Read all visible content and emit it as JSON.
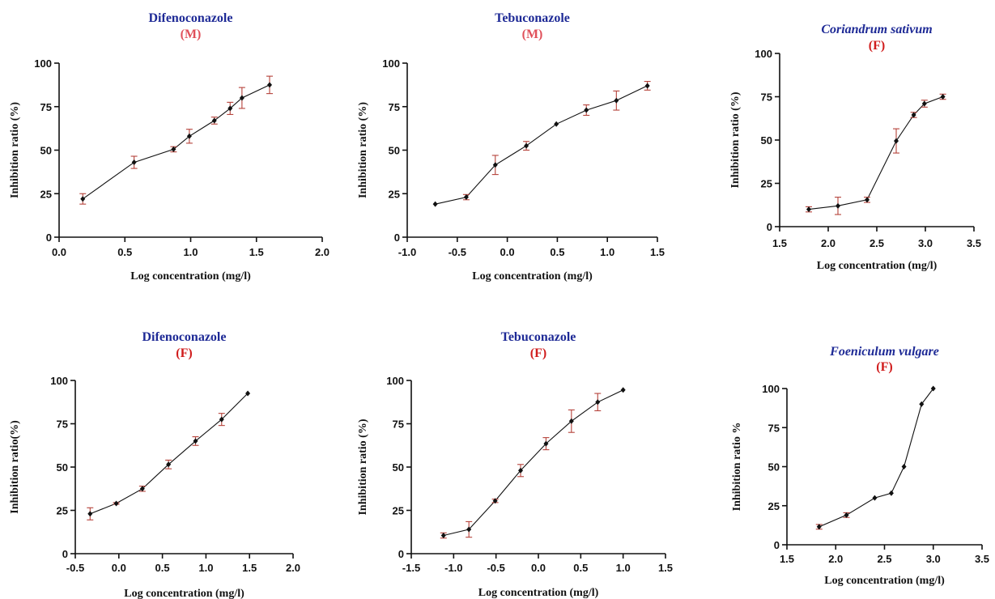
{
  "chart_data": [
    {
      "type": "line",
      "title": "Difenoconazole",
      "subtitle": "(M)",
      "subtitle_color": "#e0505a",
      "xlabel": "Log concentration (mg/l)",
      "ylabel": "Inhibition ratio (%)",
      "xlim": [
        0.0,
        2.0
      ],
      "ylim": [
        0,
        100
      ],
      "xticks": [
        "0.0",
        "0.5",
        "1.0",
        "1.5",
        "2.0"
      ],
      "yticks": [
        "0",
        "25",
        "50",
        "75",
        "100"
      ],
      "grid": false,
      "x": [
        0.18,
        0.57,
        0.87,
        0.99,
        1.18,
        1.3,
        1.39,
        1.6
      ],
      "y": [
        22,
        43,
        50.5,
        58,
        67,
        74,
        80,
        87.5
      ],
      "error": [
        3,
        3.5,
        1.5,
        4,
        2,
        3.5,
        6,
        5
      ]
    },
    {
      "type": "line",
      "title": "Tebuconazole",
      "subtitle": "(M)",
      "subtitle_color": "#e0505a",
      "xlabel": "Log concentration (mg/l)",
      "ylabel": "Inhibition ratio (%)",
      "xlim": [
        -1.0,
        1.5
      ],
      "ylim": [
        0,
        100
      ],
      "xticks": [
        "-1.0",
        "-0.5",
        "0.0",
        "0.5",
        "1.0",
        "1.5"
      ],
      "yticks": [
        "0",
        "25",
        "50",
        "75",
        "100"
      ],
      "grid": false,
      "x": [
        -0.72,
        -0.41,
        -0.12,
        0.19,
        0.49,
        0.79,
        1.09,
        1.4
      ],
      "y": [
        19,
        23,
        41.5,
        52.5,
        65,
        73,
        78.5,
        87
      ],
      "error": [
        0,
        1.5,
        5.5,
        2.5,
        0,
        3,
        5.5,
        2.5
      ]
    },
    {
      "type": "line",
      "title": "Coriandrum sativum",
      "title_italic": true,
      "subtitle": "(F)",
      "subtitle_color": "#d01c1c",
      "xlabel": "Log concentration (mg/l)",
      "ylabel": "Inhibition ratio (%)",
      "xlim": [
        1.5,
        3.5
      ],
      "ylim": [
        0,
        100
      ],
      "xticks": [
        "1.5",
        "2.0",
        "2.5",
        "3.0",
        "3.5"
      ],
      "yticks": [
        "0",
        "25",
        "50",
        "75",
        "100"
      ],
      "grid": false,
      "x": [
        1.8,
        2.1,
        2.4,
        2.7,
        2.88,
        2.99,
        3.18
      ],
      "y": [
        10,
        12,
        15.5,
        49.5,
        64.5,
        71,
        75
      ],
      "error": [
        1.5,
        5,
        1.5,
        7,
        1.5,
        2,
        1.5
      ]
    },
    {
      "type": "line",
      "title": "Difenoconazole",
      "subtitle": "(F)",
      "subtitle_color": "#d01c1c",
      "xlabel": "Log concentration (mg/l)",
      "ylabel": "Inhibition ratio(%)",
      "xlim": [
        -0.5,
        2.0
      ],
      "ylim": [
        0,
        100
      ],
      "xticks": [
        "-0.5",
        "0.0",
        "0.5",
        "1.0",
        "1.5",
        "2.0"
      ],
      "yticks": [
        "0",
        "25",
        "50",
        "75",
        "100"
      ],
      "grid": false,
      "x": [
        -0.33,
        -0.03,
        0.27,
        0.57,
        0.88,
        1.18,
        1.48
      ],
      "y": [
        23,
        29,
        37.5,
        51.5,
        65,
        77.5,
        92.5
      ],
      "error": [
        3.5,
        0.5,
        1.5,
        2.5,
        2.5,
        3.5,
        0
      ]
    },
    {
      "type": "line",
      "title": "Tebuconazole",
      "subtitle": "(F)",
      "subtitle_color": "#d01c1c",
      "xlabel": "Log concentration (mg/l)",
      "ylabel": "Inhibition ratio (%)",
      "xlim": [
        -1.5,
        1.5
      ],
      "ylim": [
        0,
        100
      ],
      "xticks": [
        "-1.5",
        "-1.0",
        "-0.5",
        "0.0",
        "0.5",
        "1.0",
        "1.5"
      ],
      "yticks": [
        "0",
        "25",
        "50",
        "75",
        "100"
      ],
      "grid": false,
      "x": [
        -1.12,
        -0.82,
        -0.51,
        -0.21,
        0.09,
        0.39,
        0.7,
        1.0
      ],
      "y": [
        10.5,
        14,
        30.5,
        48,
        63.5,
        76.5,
        87.5,
        94.5
      ],
      "error": [
        1.5,
        4.5,
        1,
        3.5,
        3.5,
        6.5,
        5,
        0
      ]
    },
    {
      "type": "line",
      "title": "Foeniculum vulgare",
      "title_italic": true,
      "subtitle": "(F)",
      "subtitle_color": "#d01c1c",
      "xlabel": "Log concentration (mg/l)",
      "ylabel": "Inhibition ratio %",
      "xlim": [
        1.5,
        3.5
      ],
      "ylim": [
        0,
        100
      ],
      "xticks": [
        "1.5",
        "2.0",
        "2.5",
        "3.0",
        "3.5"
      ],
      "yticks": [
        "0",
        "25",
        "50",
        "75",
        "100"
      ],
      "grid": false,
      "x": [
        1.83,
        2.11,
        2.4,
        2.57,
        2.7,
        2.88,
        3.0
      ],
      "y": [
        11.5,
        19,
        30,
        33,
        50,
        90,
        100
      ],
      "error": [
        1.5,
        1.5,
        0,
        0,
        0,
        0,
        0
      ]
    }
  ]
}
